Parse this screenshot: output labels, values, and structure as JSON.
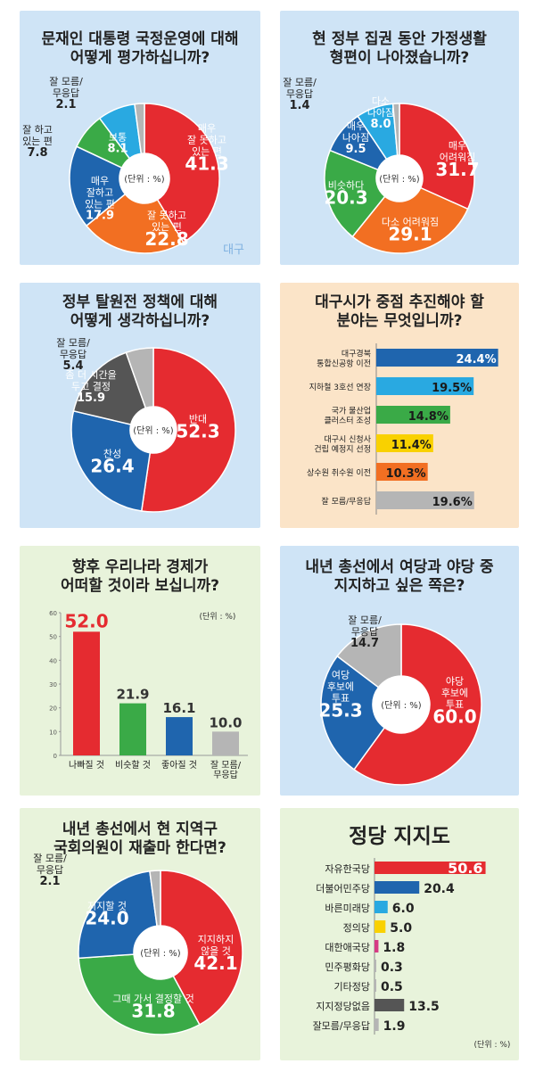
{
  "colors": {
    "red": "#e52b30",
    "orange": "#f26f22",
    "green": "#3aaa47",
    "blue": "#1f65ae",
    "sky": "#29a9e1",
    "gray": "#b5b5b5",
    "yellow": "#f9d100",
    "pink": "#d63b84",
    "dark": "#555555"
  },
  "charts": [
    {
      "id": "p1",
      "title": [
        "문재인 대통령 국정운영에 대해",
        "어떻게 평가하십니까?"
      ],
      "center": "(단위 : %)",
      "watermark": "대구",
      "chart_data": {
        "type": "pie",
        "slices": [
          {
            "label": "매우 잘 못하고 있는 편",
            "value": 41.3,
            "color": "red",
            "text": [
              "매우",
              "잘 못하고",
              "있는 편",
              "41.3"
            ]
          },
          {
            "label": "잘 못하고 있는 편",
            "value": 22.8,
            "color": "orange",
            "text": [
              "잘 못하고",
              "있는 편",
              "22.8"
            ]
          },
          {
            "label": "매우 잘하고 있는 편",
            "value": 17.9,
            "color": "blue",
            "text": [
              "매우",
              "잘하고",
              "있는 편",
              "17.9"
            ]
          },
          {
            "label": "잘 하고 있는 편",
            "value": 7.8,
            "color": "green",
            "text": [
              "잘 하고",
              "있는 편",
              "7.8"
            ]
          },
          {
            "label": "보통",
            "value": 8.1,
            "color": "sky",
            "text": [
              "보통",
              "8.1"
            ]
          },
          {
            "label": "잘 모름/무응답",
            "value": 2.1,
            "color": "gray",
            "text": [
              "잘 모름/",
              "무응답",
              "2.1"
            ]
          }
        ]
      }
    },
    {
      "id": "p2",
      "title": [
        "현 정부 집권 동안 가정생활",
        "형편이 나아졌습니까?"
      ],
      "center": "(단위 : %)",
      "chart_data": {
        "type": "pie",
        "slices": [
          {
            "label": "매우 어려워짐",
            "value": 31.7,
            "color": "red",
            "text": [
              "매우",
              "어려워짐",
              "31.7"
            ]
          },
          {
            "label": "다소 어려워짐",
            "value": 29.1,
            "color": "orange",
            "text": [
              "다소 어려워짐",
              "29.1"
            ]
          },
          {
            "label": "비슷하다",
            "value": 20.3,
            "color": "green",
            "text": [
              "비슷하다",
              "20.3"
            ]
          },
          {
            "label": "매우 나아짐",
            "value": 9.5,
            "color": "blue",
            "text": [
              "매우",
              "나아짐",
              "9.5"
            ]
          },
          {
            "label": "다소 나아짐",
            "value": 8.0,
            "color": "sky",
            "text": [
              "다소",
              "나아짐",
              "8.0"
            ]
          },
          {
            "label": "잘 모름/무응답",
            "value": 1.4,
            "color": "gray",
            "text": [
              "잘 모름/",
              "무응답",
              "1.4"
            ]
          }
        ]
      }
    },
    {
      "id": "p3",
      "title": [
        "정부 탈원전 정책에 대해",
        "어떻게 생각하십니까?"
      ],
      "center": "(단위 : %)",
      "chart_data": {
        "type": "pie",
        "slices": [
          {
            "label": "반대",
            "value": 52.3,
            "color": "red",
            "text": [
              "반대",
              "52.3"
            ]
          },
          {
            "label": "찬성",
            "value": 26.4,
            "color": "blue",
            "text": [
              "찬성",
              "26.4"
            ]
          },
          {
            "label": "좀 더 시간을 두고 결정",
            "value": 15.9,
            "color": "dark",
            "text": [
              "좀 더 시간을",
              "두고 결정",
              "15.9"
            ]
          },
          {
            "label": "잘 모름/무응답",
            "value": 5.4,
            "color": "gray",
            "text": [
              "잘 모름/",
              "무응답",
              "5.4"
            ]
          }
        ]
      }
    },
    {
      "id": "p4",
      "title": [
        "대구시가 중점 추진해야 할",
        "분야는 무엇입니까?"
      ],
      "chart_data": {
        "type": "bar",
        "orientation": "horizontal",
        "xlim": [
          0,
          25
        ],
        "categories": [
          [
            "대구경북",
            "통합신공항 이전"
          ],
          [
            "지하철 3호선 연장"
          ],
          [
            "국가 물산업",
            "클러스터 조성"
          ],
          [
            "대구시 신청사",
            "건립 예정지 선정"
          ],
          [
            "상수원 취수원 이전"
          ],
          [
            "잘 모름/무응답"
          ]
        ],
        "values": [
          24.4,
          19.5,
          14.8,
          11.4,
          10.3,
          19.6
        ],
        "labels": [
          "24.4%",
          "19.5%",
          "14.8%",
          "11.4%",
          "10.3%",
          "19.6%"
        ],
        "colors": [
          "blue",
          "sky",
          "green",
          "yellow",
          "orange",
          "gray"
        ]
      }
    },
    {
      "id": "p5",
      "title": [
        "향후 우리나라 경제가",
        "어떠할 것이라 보십니까?"
      ],
      "unit": "(단위 : %)",
      "chart_data": {
        "type": "bar",
        "orientation": "vertical",
        "ylim": [
          0,
          60
        ],
        "yticks": [
          "0",
          "10",
          "20",
          "30",
          "40",
          "50",
          "60"
        ],
        "categories": [
          [
            "나빠질 것"
          ],
          [
            "비슷할 것"
          ],
          [
            "좋아질 것"
          ],
          [
            "잘 모름/",
            "무응답"
          ]
        ],
        "values": [
          52.0,
          21.9,
          16.1,
          10.0
        ],
        "labels": [
          "52.0",
          "21.9",
          "16.1",
          "10.0"
        ],
        "colors": [
          "red",
          "green",
          "blue",
          "gray"
        ]
      }
    },
    {
      "id": "p6",
      "title": [
        "내년 총선에서 여당과 야당 중",
        "지지하고 싶은 쪽은?"
      ],
      "center": "(단위 : %)",
      "chart_data": {
        "type": "pie",
        "slices": [
          {
            "label": "야당 후보에 투표",
            "value": 60.0,
            "color": "red",
            "text": [
              "야당",
              "후보에",
              "투표",
              "60.0"
            ]
          },
          {
            "label": "여당 후보에 투표",
            "value": 25.3,
            "color": "blue",
            "text": [
              "여당",
              "후보에",
              "투표",
              "25.3"
            ]
          },
          {
            "label": "잘 모름/무응답",
            "value": 14.7,
            "color": "gray",
            "text": [
              "잘 모름/",
              "무응답",
              "14.7"
            ]
          }
        ]
      }
    },
    {
      "id": "p7",
      "title": [
        "내년 총선에서 현 지역구",
        "국회의원이 재출마 한다면?"
      ],
      "center": "(단위 : %)",
      "chart_data": {
        "type": "pie",
        "slices": [
          {
            "label": "지지하지 않을 것",
            "value": 42.1,
            "color": "red",
            "text": [
              "지지하지",
              "않을 것",
              "42.1"
            ]
          },
          {
            "label": "그때 가서 결정할 것",
            "value": 31.8,
            "color": "green",
            "text": [
              "그때 가서 결정할 것",
              "31.8"
            ]
          },
          {
            "label": "지지할 것",
            "value": 24.0,
            "color": "blue",
            "text": [
              "지지할 것",
              "24.0"
            ]
          },
          {
            "label": "잘 모름/무응답",
            "value": 2.1,
            "color": "gray",
            "text": [
              "잘 모름/",
              "무응답",
              "2.1"
            ]
          }
        ]
      }
    },
    {
      "id": "p8",
      "title": [
        "정당 지지도"
      ],
      "unit": "(단위 : %)",
      "chart_data": {
        "type": "bar",
        "orientation": "horizontal",
        "xlim": [
          0,
          52
        ],
        "categories": [
          "자유한국당",
          "더불어민주당",
          "바른미래당",
          "정의당",
          "대한애국당",
          "민주평화당",
          "기타정당",
          "지지정당없음",
          "잘모름/무응답"
        ],
        "values": [
          50.6,
          20.4,
          6.0,
          5.0,
          1.8,
          0.3,
          0.5,
          13.5,
          1.9
        ],
        "labels": [
          "50.6",
          "20.4",
          "6.0",
          "5.0",
          "1.8",
          "0.3",
          "0.5",
          "13.5",
          "1.9"
        ],
        "colors": [
          "red",
          "blue",
          "sky",
          "yellow",
          "pink",
          "gray",
          "gray",
          "dark",
          "gray"
        ]
      }
    }
  ]
}
